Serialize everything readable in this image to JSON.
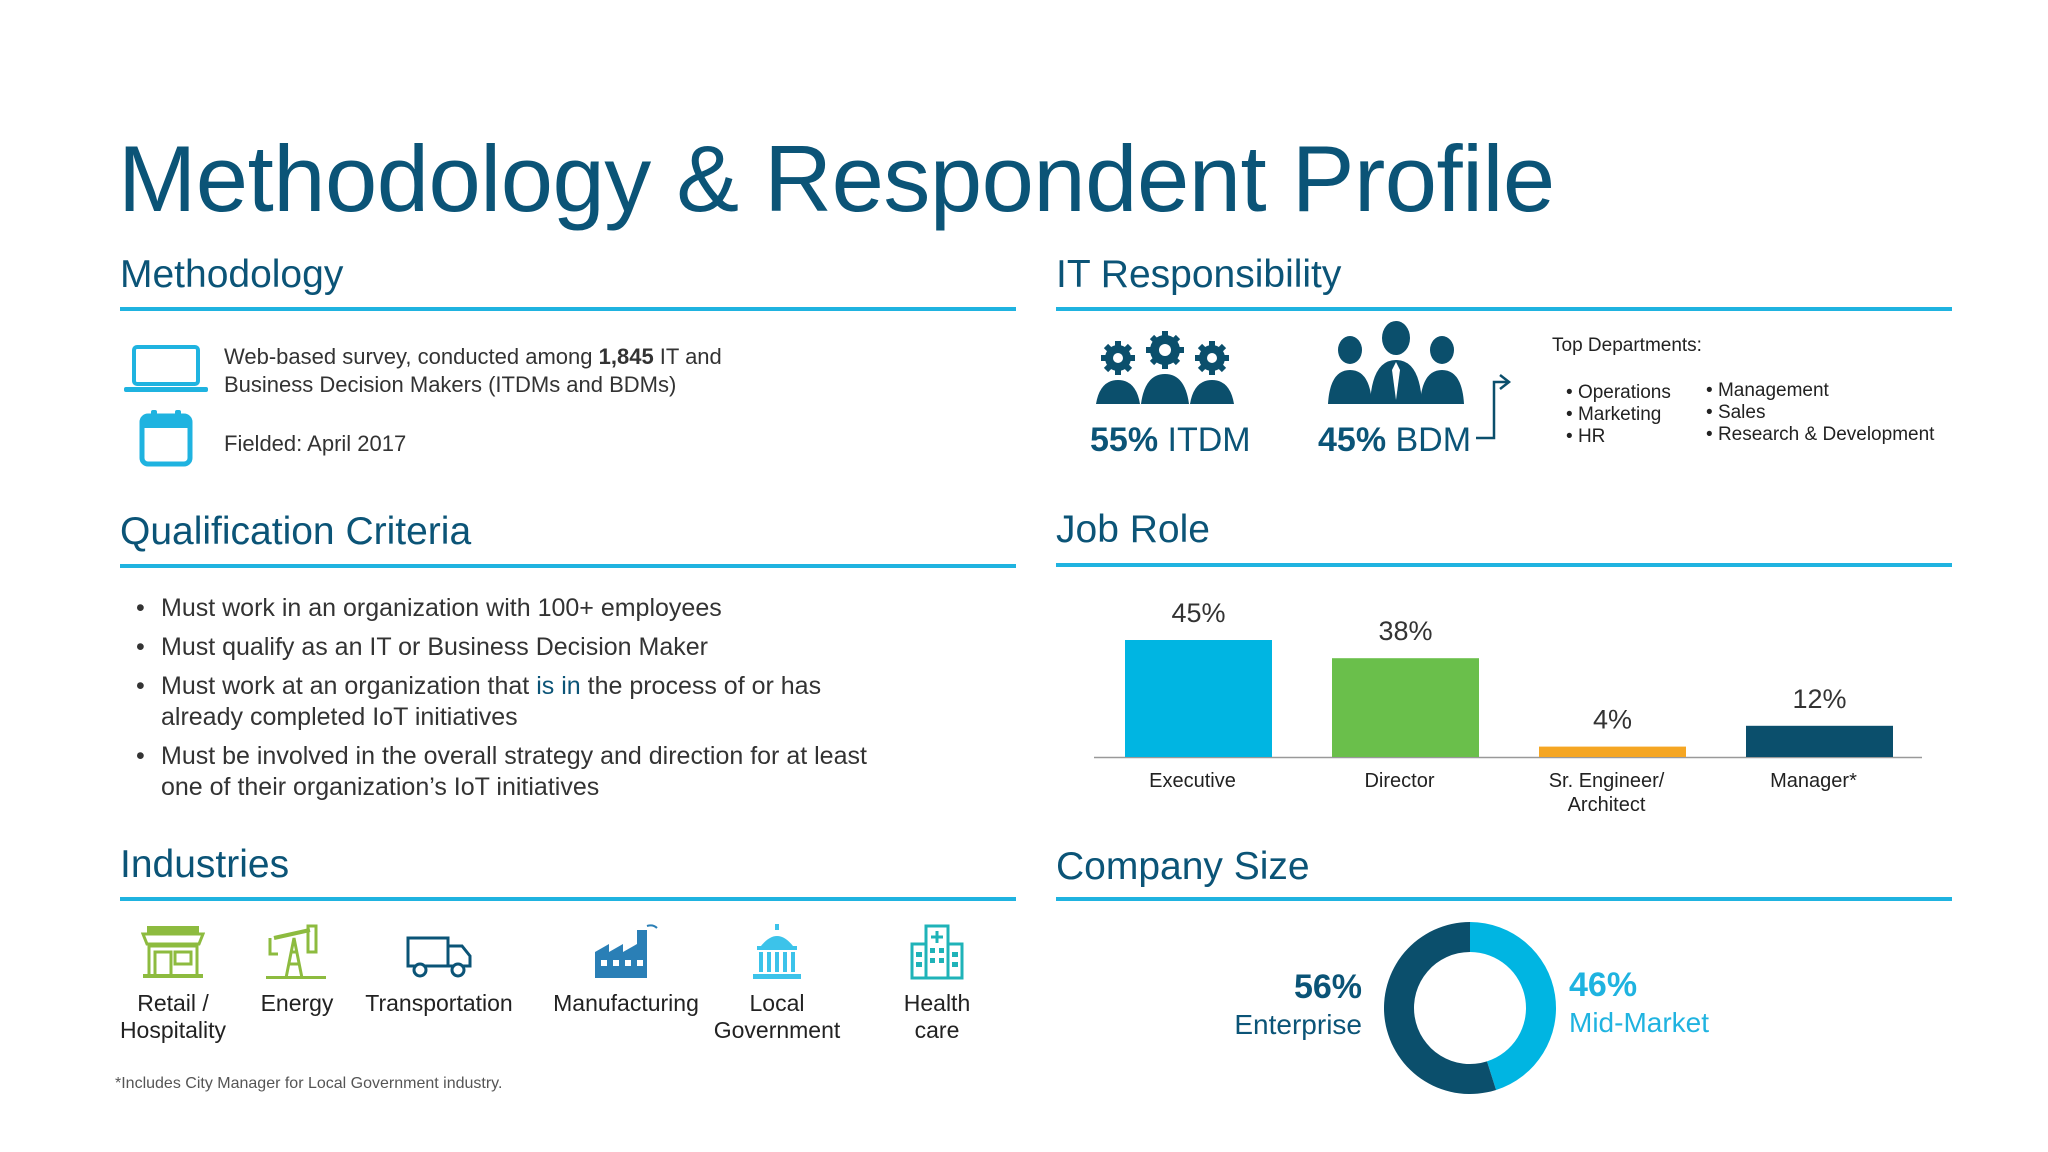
{
  "title": "Methodology & Respondent Profile",
  "methodology": {
    "heading": "Methodology",
    "survey_pre": "Web-based survey, conducted among ",
    "survey_count": "1,845",
    "survey_post": " IT and",
    "survey_line2": "Business Decision Makers (ITDMs and BDMs)",
    "fielded": "Fielded: April 2017",
    "laptop_icon": "laptop-icon",
    "calendar_icon": "calendar-icon"
  },
  "qualification": {
    "heading": "Qualification Criteria",
    "items": [
      {
        "line1": "Must work in an organization with 100+ employees"
      },
      {
        "line1": "Must qualify as an IT or Business Decision Maker"
      },
      {
        "line1_pre": "Must work at an organization that ",
        "line1_blue": "is in",
        "line1_post": " the process of or has",
        "line2": "already completed IoT initiatives"
      },
      {
        "line1": "Must be involved in the overall strategy and direction for at least",
        "line2": "one of their organization’s IoT initiatives"
      }
    ]
  },
  "industries": {
    "heading": "Industries",
    "items": [
      {
        "line1": "Retail /",
        "line2": "Hospitality",
        "icon": "retail-store-icon",
        "color": "#8dbb3f"
      },
      {
        "line1": "Energy",
        "line2": "",
        "icon": "oil-pump-icon",
        "color": "#8dbb3f"
      },
      {
        "line1": "Transportation",
        "line2": "",
        "icon": "truck-icon",
        "color": "#0b5477"
      },
      {
        "line1": "Manufacturing",
        "line2": "",
        "icon": "factory-icon",
        "color": "#2a7fb6"
      },
      {
        "line1": "Local",
        "line2": "Government",
        "icon": "capitol-building-icon",
        "color": "#3cc3ea"
      },
      {
        "line1": "Health",
        "line2": "care",
        "icon": "hospital-icon",
        "color": "#1fb3b8"
      }
    ]
  },
  "footnote": "*Includes City Manager for Local Government industry.",
  "it_responsibility": {
    "heading": "IT Responsibility",
    "itdm_pct": "55%",
    "itdm_label": " ITDM",
    "bdm_pct": "45%",
    "bdm_label": " BDM",
    "itdm_icon": "gears-people-icon",
    "bdm_icon": "business-people-icon",
    "top_departments_label": "Top Departments:",
    "departments_col1": [
      "Operations",
      "Marketing",
      "HR"
    ],
    "departments_col2": [
      "Management",
      "Sales",
      "Research & Development"
    ]
  },
  "job_role": {
    "heading": "Job Role"
  },
  "company_size": {
    "heading": "Company Size",
    "enterprise_pct": "56%",
    "enterprise_label": "Enterprise",
    "midmarket_pct": "46%",
    "midmarket_label": "Mid-Market"
  },
  "colors": {
    "accent": "#1fb3e0",
    "title_blue": "#0b5477",
    "executive": "#00b5e2",
    "director": "#6abf4b",
    "engineer": "#f5a623",
    "manager": "#0b4f6c",
    "enterprise": "#0b4f6c",
    "midmarket": "#00b5e2"
  },
  "chart_data": [
    {
      "type": "bar",
      "categories": [
        "Executive",
        "Director",
        "Sr. Engineer/ Architect",
        "Manager*"
      ],
      "category_lines": [
        [
          "Executive"
        ],
        [
          "Director"
        ],
        [
          "Sr. Engineer/",
          "Architect"
        ],
        [
          "Manager*"
        ]
      ],
      "values": [
        45,
        38,
        4,
        12
      ],
      "value_labels": [
        "45%",
        "38%",
        "4%",
        "12%"
      ],
      "colors": [
        "#00b5e2",
        "#6abf4b",
        "#f5a623",
        "#0b4f6c"
      ],
      "ylim": [
        0,
        45
      ],
      "title": "",
      "xlabel": "",
      "ylabel": "",
      "grid": false
    },
    {
      "type": "pie",
      "categories": [
        "Enterprise",
        "Mid-Market"
      ],
      "values": [
        56,
        46
      ],
      "colors": [
        "#0b4f6c",
        "#00b5e2"
      ],
      "donut": true
    }
  ]
}
